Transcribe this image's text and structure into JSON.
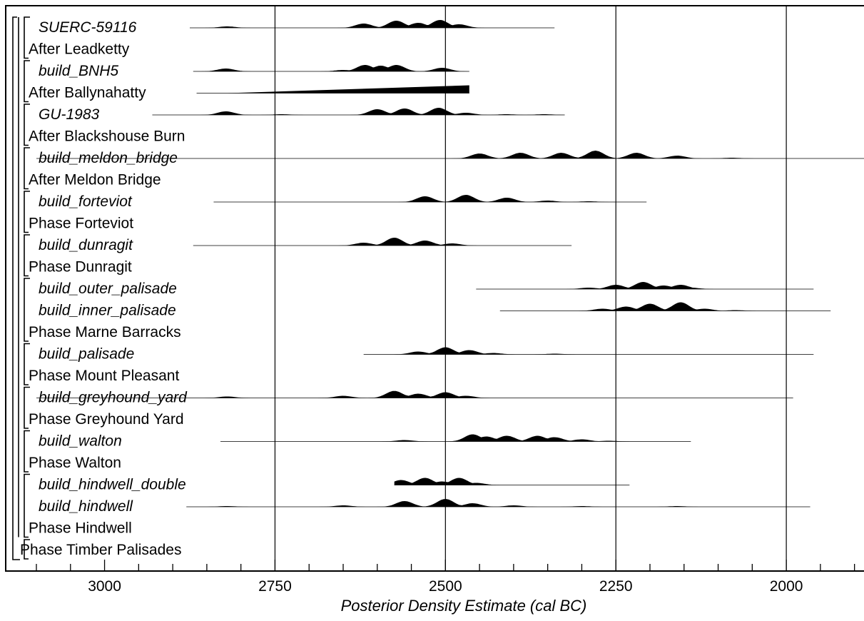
{
  "chart_data": {
    "type": "area",
    "xlabel": "Posterior Density Estimate (cal BC)",
    "x_axis_reversed": true,
    "xlim": [
      3145,
      1885
    ],
    "major_ticks": [
      3000,
      2750,
      2500,
      2250,
      2000
    ],
    "minor_tick_step": 50,
    "gridlines": [
      2750,
      2500,
      2250,
      2000
    ],
    "rows": [
      {
        "label": "SUERC-59116",
        "kind": "dist",
        "range": [
          2875,
          2340
        ],
        "peaks": [
          [
            2820,
            2
          ],
          [
            2620,
            6
          ],
          [
            2572,
            10
          ],
          [
            2540,
            7
          ],
          [
            2508,
            11
          ],
          [
            2480,
            5
          ]
        ]
      },
      {
        "label": "After Leadketty",
        "kind": "phase"
      },
      {
        "label": "build_BNH5",
        "kind": "dist",
        "range": [
          2870,
          2465
        ],
        "peaks": [
          [
            2822,
            4
          ],
          [
            2650,
            2
          ],
          [
            2618,
            9
          ],
          [
            2595,
            8
          ],
          [
            2572,
            9
          ],
          [
            2505,
            5
          ]
        ]
      },
      {
        "label": "After Ballynahatty",
        "kind": "after",
        "range": [
          2865,
          2465
        ],
        "after_from": 2820,
        "after_height": 11
      },
      {
        "label": "GU-1983",
        "kind": "dist",
        "range": [
          2930,
          2325
        ],
        "peaks": [
          [
            2822,
            5
          ],
          [
            2740,
            1
          ],
          [
            2600,
            8
          ],
          [
            2560,
            9
          ],
          [
            2510,
            10
          ],
          [
            2470,
            3
          ],
          [
            2410,
            1
          ],
          [
            2355,
            1
          ]
        ]
      },
      {
        "label": "After Blackshouse Burn",
        "kind": "phase"
      },
      {
        "label": "build_meldon_bridge",
        "kind": "dist",
        "range": [
          3100,
          1885
        ],
        "peaks": [
          [
            2450,
            7
          ],
          [
            2390,
            8
          ],
          [
            2330,
            8
          ],
          [
            2280,
            11
          ],
          [
            2220,
            8
          ],
          [
            2160,
            4
          ],
          [
            2080,
            1
          ]
        ]
      },
      {
        "label": "After Meldon Bridge",
        "kind": "phase"
      },
      {
        "label": "build_forteviot",
        "kind": "dist",
        "range": [
          2840,
          2205
        ],
        "peaks": [
          [
            2530,
            8
          ],
          [
            2470,
            10
          ],
          [
            2410,
            6
          ],
          [
            2350,
            2
          ],
          [
            2290,
            1
          ]
        ]
      },
      {
        "label": "Phase Forteviot",
        "kind": "phase"
      },
      {
        "label": "build_dunragit",
        "kind": "dist",
        "range": [
          2870,
          2315
        ],
        "peaks": [
          [
            2620,
            4
          ],
          [
            2575,
            11
          ],
          [
            2530,
            7
          ],
          [
            2490,
            3
          ]
        ]
      },
      {
        "label": "Phase Dunragit",
        "kind": "phase"
      },
      {
        "label": "build_outer_palisade",
        "kind": "dist",
        "range": [
          2455,
          1960
        ],
        "peaks": [
          [
            2290,
            2
          ],
          [
            2250,
            6
          ],
          [
            2210,
            10
          ],
          [
            2180,
            5
          ],
          [
            2155,
            6
          ],
          [
            2140,
            2
          ]
        ]
      },
      {
        "label": "build_inner_palisade",
        "kind": "dist",
        "range": [
          2420,
          1935
        ],
        "peaks": [
          [
            2270,
            3
          ],
          [
            2235,
            6
          ],
          [
            2200,
            10
          ],
          [
            2155,
            12
          ],
          [
            2120,
            3
          ],
          [
            2075,
            1
          ]
        ]
      },
      {
        "label": "Phase Marne Barracks",
        "kind": "phase"
      },
      {
        "label": "build_palisade",
        "kind": "dist",
        "range": [
          2620,
          1960
        ],
        "peaks": [
          [
            2540,
            4
          ],
          [
            2500,
            10
          ],
          [
            2465,
            6
          ],
          [
            2430,
            2
          ],
          [
            2340,
            1
          ]
        ]
      },
      {
        "label": "Phase Mount Pleasant",
        "kind": "phase"
      },
      {
        "label": "build_greyhound_yard",
        "kind": "dist",
        "range": [
          3100,
          1990
        ],
        "peaks": [
          [
            2820,
            2
          ],
          [
            2650,
            3
          ],
          [
            2575,
            10
          ],
          [
            2540,
            6
          ],
          [
            2500,
            8
          ],
          [
            2470,
            3
          ]
        ]
      },
      {
        "label": "Phase Greyhound Yard",
        "kind": "phase"
      },
      {
        "label": "build_walton",
        "kind": "dist",
        "range": [
          2830,
          2140
        ],
        "peaks": [
          [
            2560,
            2
          ],
          [
            2460,
            10
          ],
          [
            2440,
            7
          ],
          [
            2410,
            8
          ],
          [
            2365,
            8
          ],
          [
            2340,
            6
          ],
          [
            2300,
            3
          ],
          [
            2260,
            1
          ]
        ]
      },
      {
        "label": "Phase Walton",
        "kind": "phase"
      },
      {
        "label": "build_hindwell_double",
        "kind": "dist",
        "range": [
          2575,
          2230
        ],
        "peaks": [
          [
            2565,
            7
          ],
          [
            2530,
            10
          ],
          [
            2505,
            5
          ],
          [
            2480,
            10
          ],
          [
            2455,
            3
          ]
        ]
      },
      {
        "label": "build_hindwell",
        "kind": "dist",
        "range": [
          2880,
          1965
        ],
        "peaks": [
          [
            2820,
            1
          ],
          [
            2650,
            2
          ],
          [
            2560,
            8
          ],
          [
            2500,
            11
          ],
          [
            2460,
            5
          ],
          [
            2400,
            2
          ],
          [
            2300,
            1
          ],
          [
            2160,
            1
          ]
        ]
      },
      {
        "label": "Phase Hindwell",
        "kind": "phase"
      },
      {
        "label": "Phase Timber Palisades",
        "kind": "phase"
      }
    ]
  }
}
